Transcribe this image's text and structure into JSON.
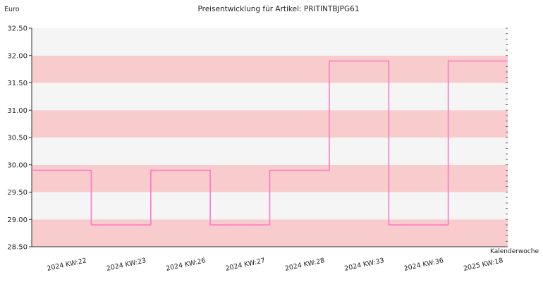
{
  "chart_data": {
    "type": "line",
    "step": true,
    "title": "Preisentwicklung für Artikel: PRITINTBJPG61",
    "ylabel": "Euro",
    "xlabel": "Kalenderwoche",
    "ylim": [
      28.5,
      32.5
    ],
    "yticks": [
      "28.50",
      "29.00",
      "29.50",
      "30.00",
      "30.50",
      "31.00",
      "31.50",
      "32.00",
      "32.50"
    ],
    "categories": [
      "2024 KW:22",
      "2024 KW:23",
      "2024 KW:26",
      "2024 KW:27",
      "2024 KW:28",
      "2024 KW:33",
      "2024 KW:36",
      "2025 KW:18"
    ],
    "series": [
      {
        "values": [
          29.9,
          28.9,
          29.9,
          28.9,
          29.9,
          31.9,
          28.9,
          31.9
        ]
      }
    ],
    "colors": {
      "line": "#ff77c8",
      "band_a": "#f8cccc",
      "band_b": "#f5f5f5",
      "axis": "#333333"
    },
    "grid": false
  }
}
